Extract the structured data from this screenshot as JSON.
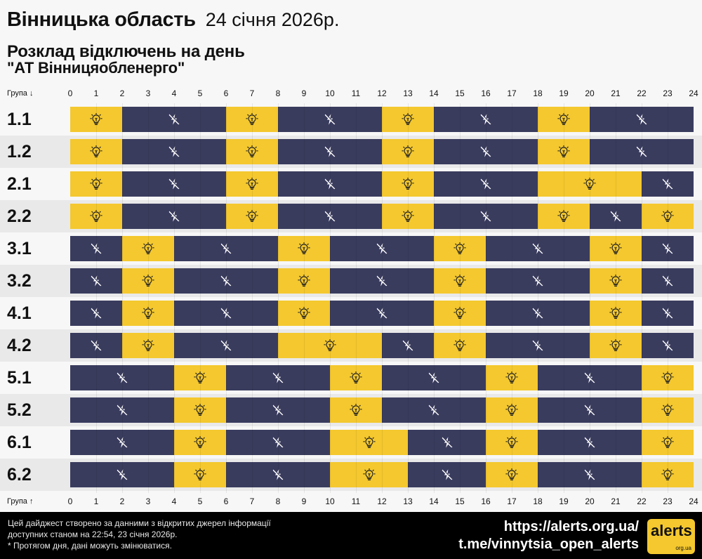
{
  "header": {
    "region": "Вінницька область",
    "date": "24 січня 2026р.",
    "subtitle": "Розклад відключень на день",
    "company": "\"АТ Вінницяобленерго\""
  },
  "axis": {
    "group_label_top": "Група ↓",
    "group_label_bottom": "Група ↑",
    "ticks": [
      "0",
      "1",
      "2",
      "3",
      "4",
      "5",
      "6",
      "7",
      "8",
      "9",
      "10",
      "11",
      "12",
      "13",
      "14",
      "15",
      "16",
      "17",
      "18",
      "19",
      "20",
      "21",
      "22",
      "23",
      "24"
    ]
  },
  "legend_icons": {
    "on": "lightbulb-icon",
    "off": "power-off-icon"
  },
  "colors": {
    "power_on": "#f4c82e",
    "power_off": "#3a3c5e",
    "footer_bg": "#000000"
  },
  "chart_data": {
    "type": "table",
    "x_unit": "hour",
    "xlim": [
      0,
      24
    ],
    "states": {
      "on": "power available",
      "off": "power outage"
    },
    "groups": [
      {
        "name": "1.1",
        "segments": [
          {
            "start": 0,
            "end": 2,
            "state": "on"
          },
          {
            "start": 2,
            "end": 6,
            "state": "off"
          },
          {
            "start": 6,
            "end": 8,
            "state": "on"
          },
          {
            "start": 8,
            "end": 12,
            "state": "off"
          },
          {
            "start": 12,
            "end": 14,
            "state": "on"
          },
          {
            "start": 14,
            "end": 18,
            "state": "off"
          },
          {
            "start": 18,
            "end": 20,
            "state": "on"
          },
          {
            "start": 20,
            "end": 24,
            "state": "off"
          }
        ]
      },
      {
        "name": "1.2",
        "segments": [
          {
            "start": 0,
            "end": 2,
            "state": "on"
          },
          {
            "start": 2,
            "end": 6,
            "state": "off"
          },
          {
            "start": 6,
            "end": 8,
            "state": "on"
          },
          {
            "start": 8,
            "end": 12,
            "state": "off"
          },
          {
            "start": 12,
            "end": 14,
            "state": "on"
          },
          {
            "start": 14,
            "end": 18,
            "state": "off"
          },
          {
            "start": 18,
            "end": 20,
            "state": "on"
          },
          {
            "start": 20,
            "end": 24,
            "state": "off"
          }
        ]
      },
      {
        "name": "2.1",
        "segments": [
          {
            "start": 0,
            "end": 2,
            "state": "on"
          },
          {
            "start": 2,
            "end": 6,
            "state": "off"
          },
          {
            "start": 6,
            "end": 8,
            "state": "on"
          },
          {
            "start": 8,
            "end": 12,
            "state": "off"
          },
          {
            "start": 12,
            "end": 14,
            "state": "on"
          },
          {
            "start": 14,
            "end": 18,
            "state": "off"
          },
          {
            "start": 18,
            "end": 22,
            "state": "on"
          },
          {
            "start": 22,
            "end": 24,
            "state": "off"
          }
        ]
      },
      {
        "name": "2.2",
        "segments": [
          {
            "start": 0,
            "end": 2,
            "state": "on"
          },
          {
            "start": 2,
            "end": 6,
            "state": "off"
          },
          {
            "start": 6,
            "end": 8,
            "state": "on"
          },
          {
            "start": 8,
            "end": 12,
            "state": "off"
          },
          {
            "start": 12,
            "end": 14,
            "state": "on"
          },
          {
            "start": 14,
            "end": 18,
            "state": "off"
          },
          {
            "start": 18,
            "end": 20,
            "state": "on"
          },
          {
            "start": 20,
            "end": 22,
            "state": "off"
          },
          {
            "start": 22,
            "end": 24,
            "state": "on"
          }
        ]
      },
      {
        "name": "3.1",
        "segments": [
          {
            "start": 0,
            "end": 2,
            "state": "off"
          },
          {
            "start": 2,
            "end": 4,
            "state": "on"
          },
          {
            "start": 4,
            "end": 8,
            "state": "off"
          },
          {
            "start": 8,
            "end": 10,
            "state": "on"
          },
          {
            "start": 10,
            "end": 14,
            "state": "off"
          },
          {
            "start": 14,
            "end": 16,
            "state": "on"
          },
          {
            "start": 16,
            "end": 20,
            "state": "off"
          },
          {
            "start": 20,
            "end": 22,
            "state": "on"
          },
          {
            "start": 22,
            "end": 24,
            "state": "off"
          }
        ]
      },
      {
        "name": "3.2",
        "segments": [
          {
            "start": 0,
            "end": 2,
            "state": "off"
          },
          {
            "start": 2,
            "end": 4,
            "state": "on"
          },
          {
            "start": 4,
            "end": 8,
            "state": "off"
          },
          {
            "start": 8,
            "end": 10,
            "state": "on"
          },
          {
            "start": 10,
            "end": 14,
            "state": "off"
          },
          {
            "start": 14,
            "end": 16,
            "state": "on"
          },
          {
            "start": 16,
            "end": 20,
            "state": "off"
          },
          {
            "start": 20,
            "end": 22,
            "state": "on"
          },
          {
            "start": 22,
            "end": 24,
            "state": "off"
          }
        ]
      },
      {
        "name": "4.1",
        "segments": [
          {
            "start": 0,
            "end": 2,
            "state": "off"
          },
          {
            "start": 2,
            "end": 4,
            "state": "on"
          },
          {
            "start": 4,
            "end": 8,
            "state": "off"
          },
          {
            "start": 8,
            "end": 10,
            "state": "on"
          },
          {
            "start": 10,
            "end": 14,
            "state": "off"
          },
          {
            "start": 14,
            "end": 16,
            "state": "on"
          },
          {
            "start": 16,
            "end": 20,
            "state": "off"
          },
          {
            "start": 20,
            "end": 22,
            "state": "on"
          },
          {
            "start": 22,
            "end": 24,
            "state": "off"
          }
        ]
      },
      {
        "name": "4.2",
        "segments": [
          {
            "start": 0,
            "end": 2,
            "state": "off"
          },
          {
            "start": 2,
            "end": 4,
            "state": "on"
          },
          {
            "start": 4,
            "end": 8,
            "state": "off"
          },
          {
            "start": 8,
            "end": 12,
            "state": "on"
          },
          {
            "start": 12,
            "end": 14,
            "state": "off"
          },
          {
            "start": 14,
            "end": 16,
            "state": "on"
          },
          {
            "start": 16,
            "end": 20,
            "state": "off"
          },
          {
            "start": 20,
            "end": 22,
            "state": "on"
          },
          {
            "start": 22,
            "end": 24,
            "state": "off"
          }
        ]
      },
      {
        "name": "5.1",
        "segments": [
          {
            "start": 0,
            "end": 4,
            "state": "off"
          },
          {
            "start": 4,
            "end": 6,
            "state": "on"
          },
          {
            "start": 6,
            "end": 10,
            "state": "off"
          },
          {
            "start": 10,
            "end": 12,
            "state": "on"
          },
          {
            "start": 12,
            "end": 16,
            "state": "off"
          },
          {
            "start": 16,
            "end": 18,
            "state": "on"
          },
          {
            "start": 18,
            "end": 22,
            "state": "off"
          },
          {
            "start": 22,
            "end": 24,
            "state": "on"
          }
        ]
      },
      {
        "name": "5.2",
        "segments": [
          {
            "start": 0,
            "end": 4,
            "state": "off"
          },
          {
            "start": 4,
            "end": 6,
            "state": "on"
          },
          {
            "start": 6,
            "end": 10,
            "state": "off"
          },
          {
            "start": 10,
            "end": 12,
            "state": "on"
          },
          {
            "start": 12,
            "end": 16,
            "state": "off"
          },
          {
            "start": 16,
            "end": 18,
            "state": "on"
          },
          {
            "start": 18,
            "end": 22,
            "state": "off"
          },
          {
            "start": 22,
            "end": 24,
            "state": "on"
          }
        ]
      },
      {
        "name": "6.1",
        "segments": [
          {
            "start": 0,
            "end": 4,
            "state": "off"
          },
          {
            "start": 4,
            "end": 6,
            "state": "on"
          },
          {
            "start": 6,
            "end": 10,
            "state": "off"
          },
          {
            "start": 10,
            "end": 13,
            "state": "on"
          },
          {
            "start": 13,
            "end": 16,
            "state": "off"
          },
          {
            "start": 16,
            "end": 18,
            "state": "on"
          },
          {
            "start": 18,
            "end": 22,
            "state": "off"
          },
          {
            "start": 22,
            "end": 24,
            "state": "on"
          }
        ]
      },
      {
        "name": "6.2",
        "segments": [
          {
            "start": 0,
            "end": 4,
            "state": "off"
          },
          {
            "start": 4,
            "end": 6,
            "state": "on"
          },
          {
            "start": 6,
            "end": 10,
            "state": "off"
          },
          {
            "start": 10,
            "end": 13,
            "state": "on"
          },
          {
            "start": 13,
            "end": 16,
            "state": "off"
          },
          {
            "start": 16,
            "end": 18,
            "state": "on"
          },
          {
            "start": 18,
            "end": 22,
            "state": "off"
          },
          {
            "start": 22,
            "end": 24,
            "state": "on"
          }
        ]
      }
    ]
  },
  "footer": {
    "note_line1": "Цей дайджест створено за данними з відкритих джерел інформації",
    "note_line2": "доступних станом на 22:54, 23 січня 2026р.",
    "note_line3": "* Протягом дня, дані можуть змінюватися.",
    "link1": "https://alerts.org.ua/",
    "link2": "t.me/vinnytsia_open_alerts",
    "logo_text": "alerts",
    "logo_sub": "org.ua"
  }
}
